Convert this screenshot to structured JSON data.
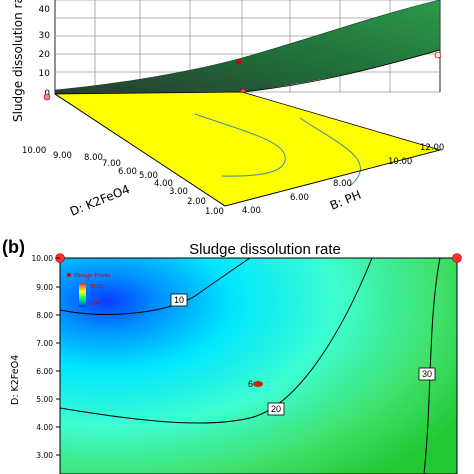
{
  "chart_data": [
    {
      "type": "surface",
      "zlabel": "Sludge dissolution rate",
      "z_ticks": [
        "0",
        "10",
        "20",
        "30",
        "40"
      ],
      "xlabel": "B: PH",
      "x_ticks": [
        "4.00",
        "6.00",
        "8.00",
        "10.00",
        "12.00"
      ],
      "ylabel": "D: K2FeO4",
      "y_ticks": [
        "1.00",
        "2.00",
        "3.00",
        "4.00",
        "5.00",
        "6.00",
        "7.00",
        "8.00",
        "9.00",
        "10.00"
      ],
      "floor_contour_color": "#ffff00",
      "surface_color": "#1f7a3a"
    },
    {
      "type": "contour",
      "panel_label": "(b)",
      "title": "Sludge dissolution rate",
      "ylabel": "D: K2FeO4",
      "y_ticks": [
        "3.00",
        "4.00",
        "5.00",
        "6.00",
        "7.00",
        "8.00",
        "9.00",
        "10.00"
      ],
      "contour_levels": [
        {
          "level": 10,
          "label": "10"
        },
        {
          "level": 20,
          "label": "20"
        },
        {
          "level": 30,
          "label": "30"
        }
      ],
      "center_point_label": "6",
      "legend": {
        "title": "Design Points",
        "max": "58.51",
        "min": "0.04"
      },
      "colors": {
        "low": "#0000ff",
        "mid": "#00ffee",
        "high": "#22cc22"
      }
    }
  ]
}
